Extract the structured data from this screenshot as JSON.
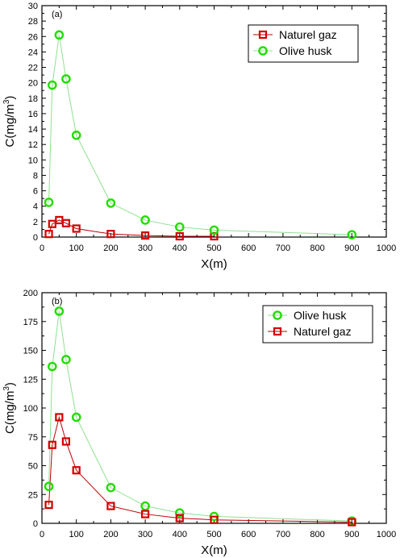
{
  "chart_data": [
    {
      "type": "line",
      "panel_label": "(a)",
      "xlabel": "X(m)",
      "ylabel": "C(mg/m",
      "ylabel_sup": "3",
      "ylabel_close": ")",
      "xlim": [
        0,
        1000
      ],
      "ylim": [
        0,
        30
      ],
      "xticks": [
        0,
        100,
        200,
        300,
        400,
        500,
        600,
        700,
        800,
        900,
        1000
      ],
      "yticks": [
        0,
        2,
        4,
        6,
        8,
        10,
        12,
        14,
        16,
        18,
        20,
        22,
        24,
        26,
        28,
        30
      ],
      "grid": false,
      "legend_position": "top-right",
      "x": [
        20,
        30,
        50,
        70,
        100,
        200,
        300,
        400,
        500,
        900
      ],
      "series": [
        {
          "name": "Naturel gaz",
          "marker": "square",
          "color": "#d40000",
          "x": [
            20,
            30,
            50,
            70,
            100,
            200,
            300,
            400,
            500
          ],
          "values": [
            0.4,
            1.7,
            2.2,
            1.8,
            1.1,
            0.4,
            0.2,
            0.1,
            0.1
          ]
        },
        {
          "name": "Olive husk",
          "marker": "circle",
          "color": "#22dd00",
          "x": [
            20,
            30,
            50,
            70,
            100,
            200,
            300,
            400,
            500,
            900
          ],
          "values": [
            4.5,
            19.7,
            26.2,
            20.5,
            13.2,
            4.4,
            2.2,
            1.3,
            0.9,
            0.3
          ]
        }
      ]
    },
    {
      "type": "line",
      "panel_label": "(b)",
      "xlabel": "X(m)",
      "ylabel": "C(mg/m",
      "ylabel_sup": "3",
      "ylabel_close": ")",
      "xlim": [
        0,
        1000
      ],
      "ylim": [
        0,
        200
      ],
      "xticks": [
        0,
        100,
        200,
        300,
        400,
        500,
        600,
        700,
        800,
        900,
        1000
      ],
      "yticks": [
        0,
        25,
        50,
        75,
        100,
        125,
        150,
        175,
        200
      ],
      "grid": false,
      "legend_position": "top-right",
      "series": [
        {
          "name": "Olive husk",
          "marker": "circle",
          "color": "#22dd00",
          "x": [
            20,
            30,
            50,
            70,
            100,
            200,
            300,
            400,
            500,
            900
          ],
          "values": [
            32,
            136,
            184,
            142,
            92,
            31,
            15,
            9,
            6,
            2
          ]
        },
        {
          "name": "Naturel gaz",
          "marker": "square",
          "color": "#d40000",
          "x": [
            20,
            30,
            50,
            70,
            100,
            200,
            300,
            400,
            500,
            900
          ],
          "values": [
            16,
            68,
            92,
            71,
            46,
            15,
            8,
            4.5,
            3,
            1
          ]
        }
      ]
    }
  ]
}
